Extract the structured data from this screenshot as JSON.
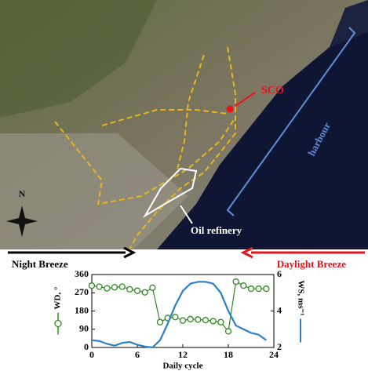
{
  "map": {
    "labels": {
      "sco": "SCO",
      "harbour": "harbour",
      "north": "N",
      "refinery": "Oil refinery"
    }
  },
  "breeze": {
    "night": "Night Breeze",
    "day": "Daylight Breeze"
  },
  "chart_data": {
    "type": "line",
    "x_label": "Daily cycle",
    "x": [
      0,
      1,
      2,
      3,
      4,
      5,
      6,
      7,
      8,
      9,
      10,
      11,
      12,
      13,
      14,
      15,
      16,
      17,
      18,
      19,
      20,
      21,
      22,
      23
    ],
    "series": [
      {
        "name": "WD, °",
        "color": "#2e8b1e",
        "marker": "circle",
        "values": [
          305,
          300,
          292,
          297,
          300,
          287,
          280,
          272,
          295,
          125,
          145,
          150,
          133,
          140,
          138,
          135,
          130,
          125,
          80,
          325,
          305,
          290,
          290,
          290
        ]
      },
      {
        "name": "WS, ms⁻¹",
        "color": "#2f7fc8",
        "axis": "y2",
        "values": [
          2.4,
          2.35,
          2.2,
          2.1,
          2.25,
          2.3,
          2.15,
          2.05,
          2.0,
          2.4,
          3.3,
          4.3,
          5.1,
          5.5,
          5.6,
          5.6,
          5.5,
          5.0,
          4.0,
          3.2,
          3.0,
          2.8,
          2.7,
          2.4
        ]
      }
    ],
    "xlim": [
      0,
      24
    ],
    "xticks": [
      0,
      6,
      12,
      18,
      24
    ],
    "ylim": [
      0,
      360
    ],
    "yticks": [
      0,
      90,
      180,
      270,
      360
    ],
    "y2lim": [
      2,
      6
    ],
    "y2ticks": [
      2,
      4,
      6
    ]
  }
}
